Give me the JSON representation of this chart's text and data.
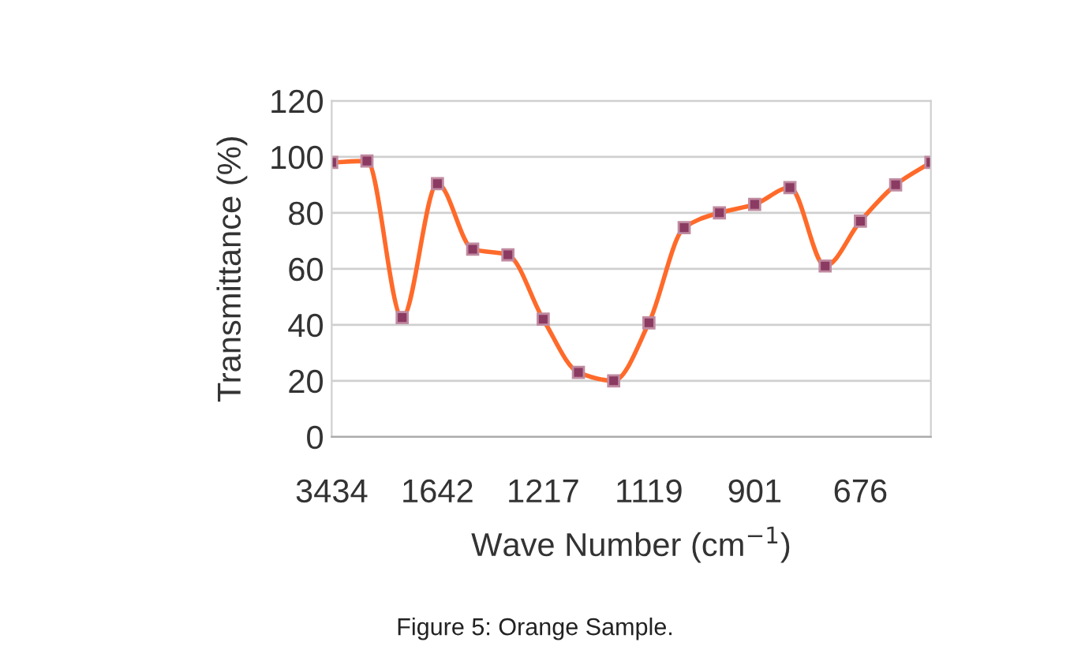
{
  "chart_data": {
    "type": "line",
    "xlabel": "Wave Number (cm$^{−1}$)",
    "ylabel": "Transmittance (%)",
    "categories": [
      "3434",
      null,
      null,
      "1642",
      null,
      null,
      "1217",
      null,
      null,
      "1119",
      null,
      null,
      "901",
      null,
      null,
      "676",
      null,
      null
    ],
    "series": [
      {
        "color": "#ff6a2a",
        "values": [
          98,
          98.5,
          42.6,
          90.4,
          67,
          65,
          42,
          23,
          20,
          40.7,
          74.7,
          80,
          83,
          89,
          61,
          77,
          90,
          98
        ]
      }
    ],
    "marker": "square",
    "line_style": "solid",
    "ylim": [
      0,
      120
    ],
    "yticks": [
      0,
      20,
      40,
      60,
      80,
      100,
      120
    ],
    "grid": "y",
    "annotations": [
      "Figure 5: Orange Sample."
    ]
  }
}
